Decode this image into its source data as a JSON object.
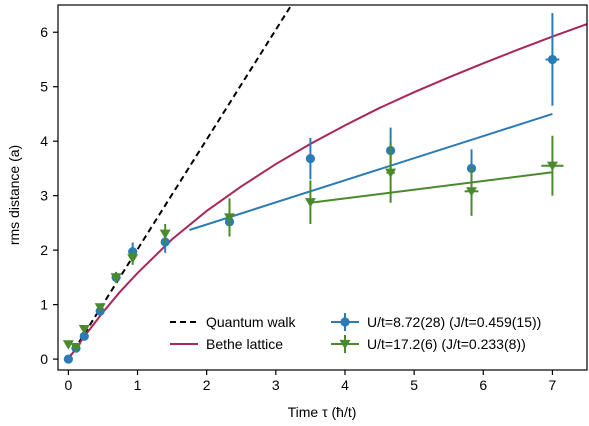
{
  "chart_data": {
    "type": "scatter",
    "xlabel": "Time τ (ħ/t)",
    "ylabel": "rms distance (a)",
    "xlim": [
      -0.15,
      7.5
    ],
    "ylim": [
      -0.2,
      6.5
    ],
    "xticks": [
      0,
      1,
      2,
      3,
      4,
      5,
      6,
      7
    ],
    "yticks": [
      0,
      1,
      2,
      3,
      4,
      5,
      6
    ],
    "grid": false,
    "legend_position": "bottom-right",
    "series": [
      {
        "name": "U/t=8.72(28) (J/t=0.459(15))",
        "kind": "errorbar",
        "marker": "circle",
        "color": "#2c7bb6",
        "x": [
          0,
          0.11,
          0.23,
          0.46,
          0.69,
          0.93,
          1.4,
          2.33,
          3.5,
          4.66,
          5.83,
          7.0
        ],
        "y": [
          0,
          0.2,
          0.42,
          0.88,
          1.5,
          1.97,
          2.15,
          2.52,
          3.68,
          3.83,
          3.5,
          5.5
        ],
        "yerr": [
          0.03,
          0.04,
          0.06,
          0.07,
          0.1,
          0.17,
          0.2,
          0.22,
          0.38,
          0.42,
          0.35,
          0.85
        ],
        "xerr": [
          0,
          0,
          0,
          0,
          0,
          0,
          0,
          0.02,
          0.02,
          0.03,
          0.06,
          0.1
        ]
      },
      {
        "name": "U/t=17.2(6) (J/t=0.233(8))",
        "kind": "errorbar",
        "marker": "triangle-down",
        "color": "#4a8a2c",
        "x": [
          0,
          0.11,
          0.23,
          0.46,
          0.69,
          0.93,
          1.4,
          2.33,
          3.5,
          4.66,
          5.83,
          7.0
        ],
        "y": [
          0.27,
          0.22,
          0.55,
          0.95,
          1.5,
          1.85,
          2.3,
          2.6,
          2.88,
          3.42,
          3.08,
          3.55
        ],
        "yerr": [
          0.03,
          0.04,
          0.06,
          0.07,
          0.1,
          0.12,
          0.18,
          0.35,
          0.4,
          0.55,
          0.45,
          0.55
        ],
        "xerr": [
          0,
          0,
          0,
          0,
          0,
          0,
          0,
          0.03,
          0.03,
          0.06,
          0.1,
          0.16
        ]
      },
      {
        "name": "",
        "kind": "line",
        "color": "#2c7bb6",
        "x": [
          1.75,
          7.0
        ],
        "y": [
          2.37,
          4.5
        ]
      },
      {
        "name": "",
        "kind": "line",
        "color": "#4a8a2c",
        "x": [
          3.5,
          7.0
        ],
        "y": [
          2.87,
          3.43
        ]
      },
      {
        "name": "Quantum walk",
        "kind": "line",
        "dashed": true,
        "color": "#000000",
        "x": [
          0,
          3.25
        ],
        "y": [
          0,
          6.55
        ]
      },
      {
        "name": "Bethe lattice",
        "kind": "line",
        "color": "#a8265a",
        "x": [
          0,
          0.25,
          0.5,
          0.75,
          1.0,
          1.5,
          2.0,
          2.5,
          3.0,
          3.5,
          4.0,
          4.5,
          5.0,
          5.5,
          6.0,
          6.5,
          7.0,
          7.5
        ],
        "y": [
          0,
          0.45,
          0.86,
          1.24,
          1.58,
          2.2,
          2.72,
          3.17,
          3.58,
          3.95,
          4.29,
          4.61,
          4.9,
          5.17,
          5.43,
          5.68,
          5.92,
          6.15
        ]
      }
    ],
    "legend": [
      {
        "label": "Quantum walk",
        "style": "dashed",
        "color": "#000000"
      },
      {
        "label": "Bethe lattice",
        "style": "line",
        "color": "#a8265a"
      },
      {
        "label": "U/t=8.72(28) (J/t=0.459(15))",
        "style": "circle-errorbar",
        "color": "#2c7bb6"
      },
      {
        "label": "U/t=17.2(6) (J/t=0.233(8))",
        "style": "triangle-errorbar",
        "color": "#4a8a2c"
      }
    ]
  }
}
